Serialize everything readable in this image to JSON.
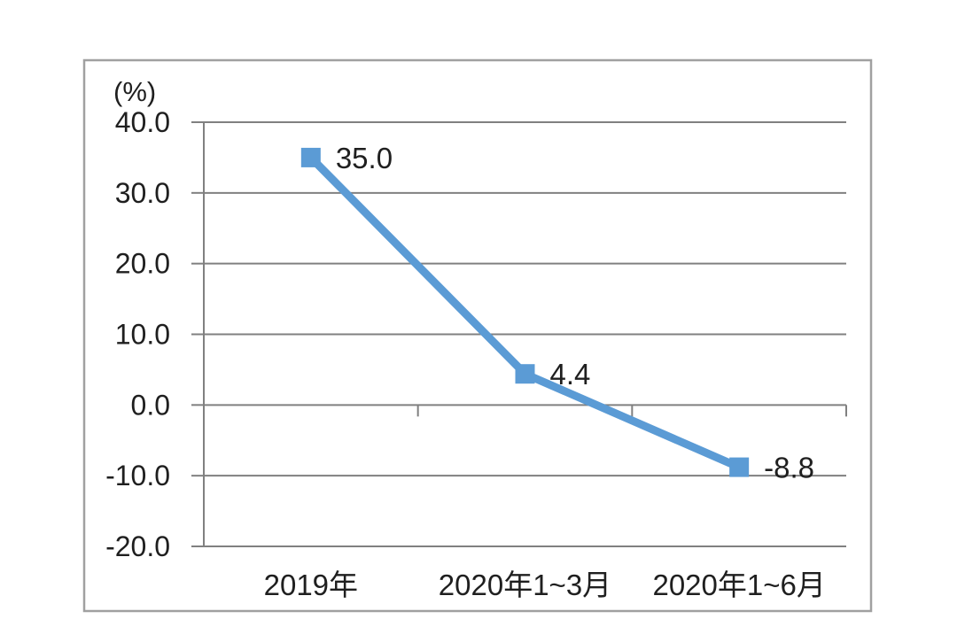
{
  "chart_data": {
    "type": "line",
    "categories": [
      "2019年",
      "2020年1~3月",
      "2020年1~6月"
    ],
    "values": [
      35.0,
      4.4,
      -8.8
    ],
    "data_labels": [
      "35.0",
      "4.4",
      "-8.8"
    ],
    "unit_label": "(%)",
    "y_tick_values": [
      40,
      30,
      20,
      10,
      0,
      -10,
      -20
    ],
    "y_tick_labels": [
      "40.0",
      "30.0",
      "20.0",
      "10.0",
      "0.0",
      "-10.0",
      "-20.0"
    ],
    "ylim": [
      -20,
      40
    ],
    "xlabel": "",
    "ylabel": "(%)",
    "title": "",
    "grid": true,
    "legend": "none",
    "marker": "square",
    "colors": {
      "line": "#5B9BD5",
      "marker": "#5B9BD5",
      "gridline": "#808080",
      "axis": "#808080",
      "frame_border": "#A0A0A0",
      "text": "#1f1f1f",
      "background": "#FFFFFF"
    }
  }
}
